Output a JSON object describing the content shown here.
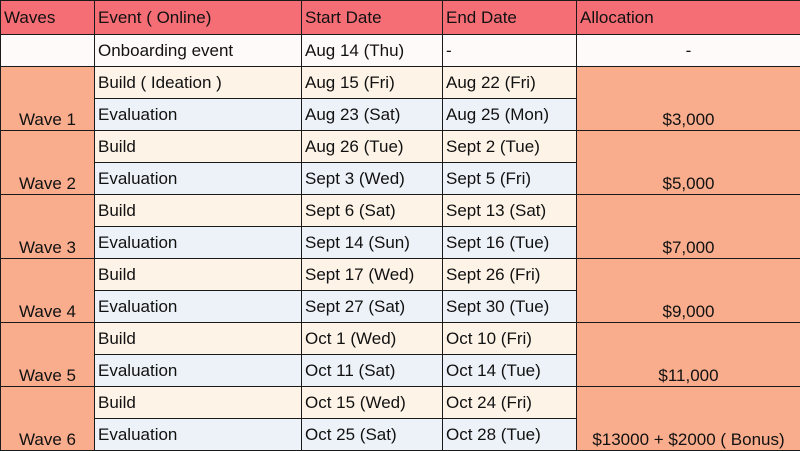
{
  "headers": {
    "waves": "Waves",
    "event": "Event ( Online)",
    "start": "Start Date",
    "end": "End Date",
    "allocation": "Allocation"
  },
  "onboarding": {
    "event": "Onboarding event",
    "start": "Aug 14 (Thu)",
    "end": "-",
    "allocation": "-"
  },
  "waves": [
    {
      "name": "Wave 1",
      "build_label": "Build ( Ideation )",
      "build_start": "Aug 15 (Fri)",
      "build_end": "Aug 22 (Fri)",
      "eval_label": "Evaluation",
      "eval_start": "Aug 23 (Sat)",
      "eval_end": "Aug 25 (Mon)",
      "allocation": "$3,000"
    },
    {
      "name": "Wave 2",
      "build_label": "Build",
      "build_start": "Aug 26 (Tue)",
      "build_end": "Sept 2 (Tue)",
      "eval_label": "Evaluation",
      "eval_start": "Sept 3 (Wed)",
      "eval_end": "Sept 5 (Fri)",
      "allocation": "$5,000"
    },
    {
      "name": "Wave 3",
      "build_label": "Build",
      "build_start": "Sept 6 (Sat)",
      "build_end": "Sept 13 (Sat)",
      "eval_label": "Evaluation",
      "eval_start": "Sept 14 (Sun)",
      "eval_end": "Sept 16 (Tue)",
      "allocation": "$7,000"
    },
    {
      "name": "Wave 4",
      "build_label": "Build",
      "build_start": "Sept 17 (Wed)",
      "build_end": "Sept 26 (Fri)",
      "eval_label": "Evaluation",
      "eval_start": "Sept 27 (Sat)",
      "eval_end": "Sept 30 (Tue)",
      "allocation": "$9,000"
    },
    {
      "name": "Wave 5",
      "build_label": "Build",
      "build_start": "Oct 1 (Wed)",
      "build_end": "Oct 10 (Fri)",
      "eval_label": "Evaluation",
      "eval_start": "Oct 11 (Sat)",
      "eval_end": "Oct 14 (Tue)",
      "allocation": "$11,000"
    },
    {
      "name": "Wave 6",
      "build_label": "Build",
      "build_start": "Oct 15 (Wed)",
      "build_end": "Oct 24 (Fri)",
      "eval_label": "Evaluation",
      "eval_start": "Oct 25 (Sat)",
      "eval_end": "Oct 28 (Tue)",
      "allocation": "$13000 + $2000 ( Bonus)"
    }
  ]
}
